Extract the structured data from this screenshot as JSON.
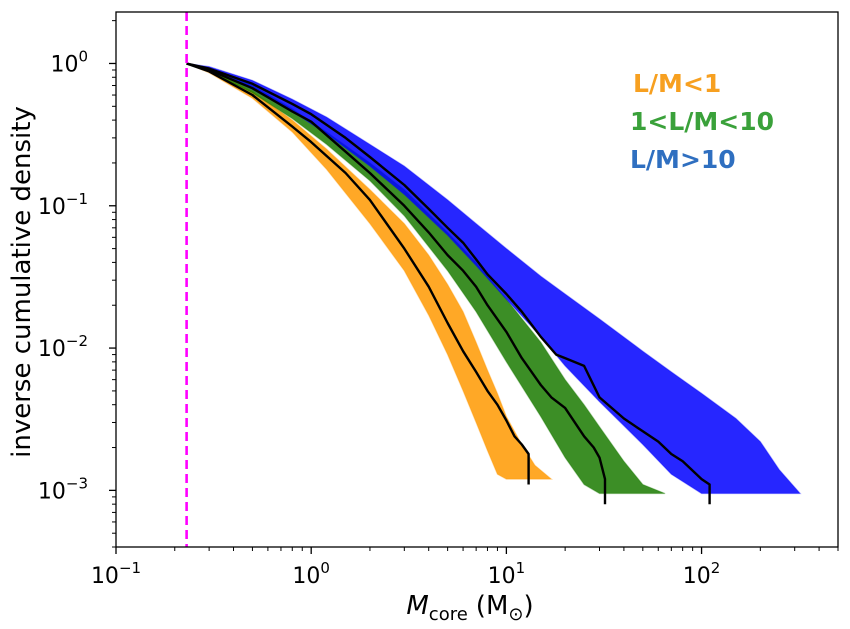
{
  "chart_data": {
    "type": "line",
    "xscale": "log",
    "yscale": "log",
    "xlim": [
      0.1,
      500
    ],
    "ylim": [
      0.0004,
      2.3
    ],
    "xlabel": {
      "main": "M",
      "sub": "core",
      "units": "(M",
      "units_sub": "⊙",
      "units_close": ")"
    },
    "ylabel": "inverse cumulative density",
    "x_ticks": [
      {
        "value": 0.1,
        "base": "10",
        "exp": "−1"
      },
      {
        "value": 1,
        "base": "10",
        "exp": "0"
      },
      {
        "value": 10,
        "base": "10",
        "exp": "1"
      },
      {
        "value": 100,
        "base": "10",
        "exp": "2"
      }
    ],
    "y_ticks": [
      {
        "value": 1,
        "base": "10",
        "exp": "0"
      },
      {
        "value": 0.1,
        "base": "10",
        "exp": "−1"
      },
      {
        "value": 0.01,
        "base": "10",
        "exp": "−2"
      },
      {
        "value": 0.001,
        "base": "10",
        "exp": "−3"
      }
    ],
    "threshold_line": {
      "x": 0.23,
      "color": "#ff00ff",
      "style": "dashed"
    },
    "legend": [
      {
        "text": "L/M<1",
        "color": "#f7a020"
      },
      {
        "text": "1<L/M<10",
        "color": "#3aa13a"
      },
      {
        "text": "L/M>10",
        "color": "#2f6fc0"
      }
    ],
    "series": [
      {
        "name": "L/M<1",
        "color": "#ff9900",
        "band": {
          "x": [
            0.23,
            0.3,
            0.5,
            0.8,
            1.2,
            2,
            3,
            4,
            5,
            6,
            7,
            8,
            9,
            10,
            12,
            14,
            17
          ],
          "upper": [
            1,
            0.9,
            0.64,
            0.4,
            0.25,
            0.13,
            0.075,
            0.045,
            0.028,
            0.018,
            0.011,
            0.007,
            0.0048,
            0.0033,
            0.0021,
            0.0015,
            0.0012
          ],
          "lower": [
            1,
            0.86,
            0.57,
            0.33,
            0.18,
            0.075,
            0.035,
            0.017,
            0.009,
            0.005,
            0.003,
            0.0019,
            0.0013,
            0.0012,
            0.0012,
            0.0012,
            0.0012
          ]
        },
        "median": {
          "x": [
            0.23,
            0.3,
            0.5,
            0.8,
            1,
            1.5,
            2,
            3,
            4,
            5,
            6,
            7,
            8,
            9,
            10,
            11,
            12,
            13,
            13
          ],
          "y": [
            1,
            0.88,
            0.6,
            0.36,
            0.28,
            0.17,
            0.11,
            0.05,
            0.027,
            0.015,
            0.0095,
            0.0068,
            0.005,
            0.004,
            0.0031,
            0.0024,
            0.0021,
            0.0018,
            0.0011
          ]
        }
      },
      {
        "name": "1<L/M<10",
        "color": "#1a7a00",
        "band": {
          "x": [
            0.23,
            0.3,
            0.5,
            0.8,
            1.2,
            2,
            3,
            5,
            7,
            10,
            15,
            20,
            25,
            30,
            40,
            50,
            65
          ],
          "upper": [
            1,
            0.92,
            0.7,
            0.48,
            0.33,
            0.2,
            0.13,
            0.065,
            0.04,
            0.022,
            0.011,
            0.006,
            0.004,
            0.0028,
            0.0016,
            0.0011,
            0.00095
          ],
          "lower": [
            1,
            0.88,
            0.62,
            0.41,
            0.27,
            0.15,
            0.085,
            0.035,
            0.018,
            0.008,
            0.0033,
            0.0017,
            0.0011,
            0.00095,
            0.00095,
            0.00095,
            0.00095
          ]
        },
        "median": {
          "x": [
            0.23,
            0.3,
            0.5,
            0.8,
            1,
            1.5,
            2,
            3,
            4,
            5,
            6,
            7,
            8,
            10,
            12,
            15,
            17,
            20,
            25,
            28,
            30,
            32,
            32
          ],
          "y": [
            1,
            0.9,
            0.67,
            0.46,
            0.39,
            0.24,
            0.17,
            0.1,
            0.065,
            0.045,
            0.035,
            0.027,
            0.02,
            0.013,
            0.0085,
            0.0055,
            0.0045,
            0.0038,
            0.0024,
            0.002,
            0.0017,
            0.0012,
            0.0008
          ]
        }
      },
      {
        "name": "L/M>10",
        "color": "#0000ff",
        "band": {
          "x": [
            0.23,
            0.3,
            0.5,
            0.8,
            1.2,
            2,
            3,
            5,
            7,
            10,
            15,
            20,
            30,
            50,
            70,
            100,
            150,
            200,
            250,
            320
          ],
          "upper": [
            1,
            0.95,
            0.76,
            0.56,
            0.42,
            0.27,
            0.19,
            0.11,
            0.075,
            0.05,
            0.032,
            0.024,
            0.016,
            0.0095,
            0.0068,
            0.0048,
            0.0032,
            0.0022,
            0.0014,
            0.00095
          ],
          "lower": [
            1,
            0.9,
            0.66,
            0.46,
            0.32,
            0.19,
            0.12,
            0.062,
            0.038,
            0.022,
            0.012,
            0.0075,
            0.0042,
            0.0021,
            0.0013,
            0.00095,
            0.00095,
            0.00095,
            0.00095,
            0.00095
          ]
        },
        "median": {
          "x": [
            0.23,
            0.3,
            0.5,
            0.8,
            1,
            1.5,
            2,
            3,
            4,
            5,
            6,
            7,
            8,
            10,
            12,
            15,
            18,
            20,
            25,
            30,
            40,
            50,
            60,
            70,
            80,
            100,
            110,
            110
          ],
          "y": [
            1,
            0.92,
            0.72,
            0.52,
            0.44,
            0.3,
            0.22,
            0.14,
            0.095,
            0.07,
            0.055,
            0.042,
            0.033,
            0.024,
            0.018,
            0.012,
            0.009,
            0.0085,
            0.0075,
            0.0045,
            0.0032,
            0.0026,
            0.0022,
            0.0018,
            0.0016,
            0.0012,
            0.0011,
            0.0008
          ]
        }
      }
    ]
  }
}
